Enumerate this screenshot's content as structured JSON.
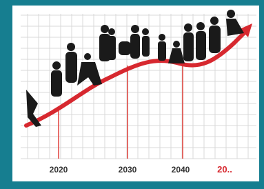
{
  "axis_labels": [
    "2020",
    "2030",
    "2040",
    "20.."
  ]
}
